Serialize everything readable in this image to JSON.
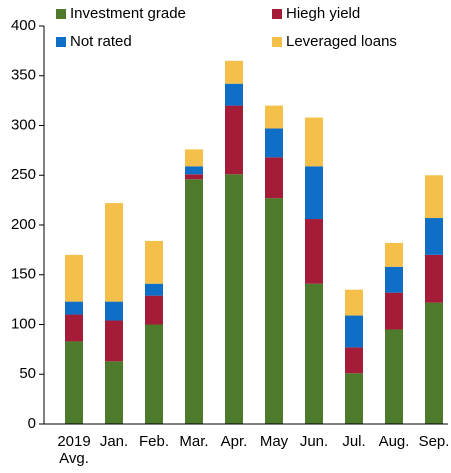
{
  "chart_data": {
    "type": "stacked_bar",
    "categories": [
      "2019 Avg.",
      "Jan.",
      "Feb.",
      "Mar.",
      "Apr.",
      "May",
      "Jun.",
      "Jul.",
      "Aug.",
      "Sep."
    ],
    "series": [
      {
        "name": "Investment grade",
        "color": "#4e7a2c",
        "values": [
          83,
          63,
          100,
          246,
          251,
          227,
          141,
          51,
          95,
          122
        ]
      },
      {
        "name": "Hiegh yield",
        "color": "#a51c38",
        "values": [
          27,
          41,
          29,
          5,
          69,
          41,
          65,
          26,
          37,
          48
        ]
      },
      {
        "name": "Not rated",
        "color": "#0f6fc6",
        "values": [
          13,
          19,
          12,
          8,
          22,
          29,
          53,
          32,
          26,
          37
        ]
      },
      {
        "name": "Leveraged loans",
        "color": "#f4c04a",
        "values": [
          47,
          99,
          43,
          17,
          23,
          23,
          49,
          26,
          24,
          43
        ]
      }
    ],
    "ylim": [
      0,
      400
    ],
    "yticks": [
      0,
      50,
      100,
      150,
      200,
      250,
      300,
      350,
      400
    ],
    "grid": false
  }
}
